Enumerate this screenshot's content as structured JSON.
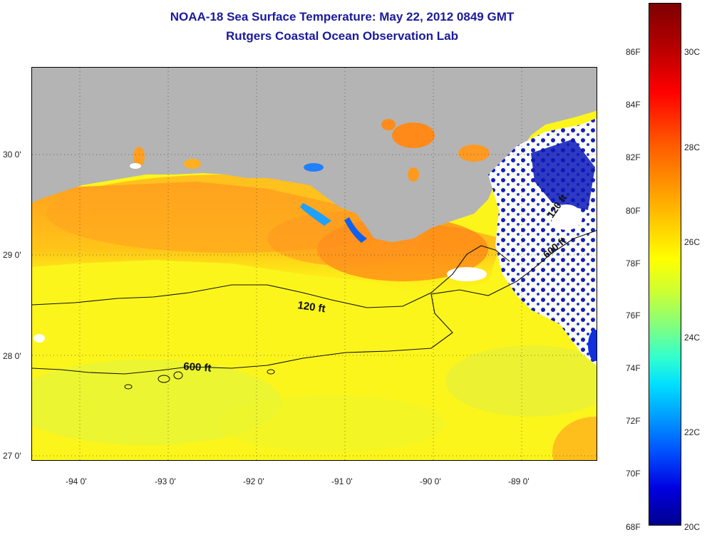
{
  "title": "NOAA-18 Sea Surface Temperature:  May 22, 2012 0849 GMT",
  "subtitle": "Rutgers Coastal Ocean Observation Lab",
  "map": {
    "latitude_labels": [
      "30 0'",
      "29 0'",
      "28 0'",
      "27 0'"
    ],
    "longitude_labels": [
      "-94 0'",
      "-93 0'",
      "-92 0'",
      "-91 0'",
      "-90 0'",
      "-89 0'"
    ],
    "contour_labels": [
      "120 ft",
      "600 ft",
      "120 ft",
      "600 ft"
    ],
    "grid": "dotted",
    "colors": {
      "land": "#b4b4b4",
      "cloud": "#ffffff",
      "warm": "#ff8c1a",
      "mid": "#ffd200",
      "cool": "#ffff1f",
      "cold": "#0000a0"
    }
  },
  "colorbar": {
    "fahrenheit_labels": [
      "86F",
      "84F",
      "82F",
      "80F",
      "78F",
      "76F",
      "74F",
      "72F",
      "70F",
      "68F"
    ],
    "celsius_labels": [
      "30C",
      "28C",
      "26C",
      "24C",
      "22C",
      "20C"
    ]
  }
}
